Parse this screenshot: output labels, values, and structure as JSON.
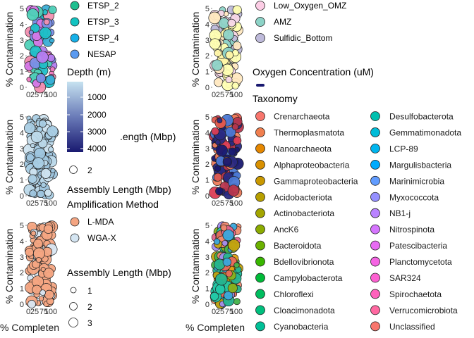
{
  "chart_data": [
    {
      "type": "scatter",
      "panel": "top-left",
      "xlabel": "",
      "ylabel": "% Contamination",
      "ylim": [
        0,
        5
      ],
      "y_ticks": [
        "0",
        "1",
        "2",
        "3",
        "4",
        "5"
      ],
      "x_ticks": [
        "0",
        "25",
        "75",
        "100"
      ],
      "fill_by": "Region",
      "fill_palette": [
        "#4ed1b8",
        "#1fc0c8",
        "#3aaed6",
        "#7a8fe8",
        "#b27df0",
        "#d678e8",
        "#f07ac0",
        "#f28fb0"
      ],
      "n_points": 80
    },
    {
      "type": "scatter",
      "panel": "top-right",
      "xlabel": "",
      "ylabel": "% Contamination",
      "ylim": [
        0,
        5
      ],
      "y_ticks": [
        "0",
        "1",
        "2",
        "3",
        "4",
        "5"
      ],
      "x_ticks": [
        "0",
        "25",
        "75",
        "100"
      ],
      "fill_by": "Region",
      "fill_palette": [
        "#ffffb3",
        "#fff5a6",
        "#ffe8c0",
        "#f8d8e8",
        "#8dd3c7",
        "#bebada"
      ],
      "n_points": 90
    },
    {
      "type": "scatter",
      "panel": "middle-left",
      "xlabel": "",
      "ylabel": "% Contamination",
      "ylim": [
        0,
        5
      ],
      "y_ticks": [
        "0",
        "1",
        "2",
        "3",
        "4",
        "5"
      ],
      "x_ticks": [
        "0",
        "25",
        "75",
        "100"
      ],
      "fill_by": "Depth (m)",
      "fill_palette": [
        "#bcd9ea",
        "#a9cde4",
        "#cfe4f0",
        "#9ec5de"
      ],
      "n_points": 110
    },
    {
      "type": "scatter",
      "panel": "middle-right",
      "xlabel": "",
      "ylabel": "% Contamination",
      "ylim": [
        0,
        5
      ],
      "y_ticks": [
        "0",
        "1",
        "2",
        "3",
        "4",
        "5"
      ],
      "x_ticks": [
        "0",
        "25",
        "75",
        "100"
      ],
      "fill_by": "Oxygen Concentration (uM)",
      "fill_palette": [
        "#191970",
        "#2a2a82",
        "#dc3d55",
        "#e35a4d",
        "#4a78d4",
        "#ee7c5c",
        "#b8364e"
      ],
      "n_points": 110
    },
    {
      "type": "scatter",
      "panel": "bottom-left",
      "xlabel": "% Completen",
      "ylabel": "% Contamination",
      "ylim": [
        0,
        5
      ],
      "y_ticks": [
        "0",
        "1",
        "2",
        "3",
        "4",
        "5"
      ],
      "x_ticks": [
        "0",
        "25",
        "75",
        "100"
      ],
      "fill_by": "Amplification Method",
      "fill_palette": [
        "#f4a582",
        "#f4a582",
        "#d8e6f2",
        "#f4a582"
      ],
      "n_points": 90
    },
    {
      "type": "scatter",
      "panel": "bottom-right",
      "xlabel": "% Completen",
      "ylabel": "% Contamination",
      "ylim": [
        0,
        5
      ],
      "y_ticks": [
        "0",
        "1",
        "2",
        "3",
        "4",
        "5"
      ],
      "x_ticks": [
        "0",
        "25",
        "75",
        "100"
      ],
      "fill_by": "Taxonomy",
      "fill_palette": [
        "#f08a6e",
        "#e86b5a",
        "#25b590",
        "#8ab01a",
        "#c4a30f",
        "#43b24a",
        "#23c8a6",
        "#de9e10",
        "#e3648c",
        "#3aa8dd",
        "#a18cf0"
      ],
      "n_points": 120
    }
  ],
  "legends": {
    "region_a": {
      "items": [
        {
          "label": "ETSP_2",
          "color": "#1fbf8f"
        },
        {
          "label": "ETSP_3",
          "color": "#12c3c1"
        },
        {
          "label": "ETSP_4",
          "color": "#16b0e8"
        },
        {
          "label": "NESAP",
          "color": "#5a9af0"
        }
      ]
    },
    "region_b": {
      "items": [
        {
          "label": "Low_Oxygen_OMZ",
          "color": "#fccde5"
        },
        {
          "label": "AMZ",
          "color": "#8dd3c7"
        },
        {
          "label": "Sulfidic_Bottom",
          "color": "#bebada"
        }
      ]
    },
    "depth": {
      "title": "Depth (m)",
      "ticks": [
        "1000",
        "2000",
        "3000",
        "4000"
      ],
      "color_low": "#191970",
      "color_high": "#c6e2f0"
    },
    "assembly_partial": {
      "title_clipped": ".ength (Mbp)",
      "items": [
        {
          "label": "2"
        }
      ]
    },
    "assembly_middle": {
      "title": "Assembly Length (Mbp)"
    },
    "amplification": {
      "title": "Amplification Method",
      "items": [
        {
          "label": "L-MDA",
          "color": "#f4a582"
        },
        {
          "label": "WGA-X",
          "color": "#d4e5f2"
        }
      ]
    },
    "assembly_bottom": {
      "title": "Assembly Length (Mbp)",
      "items": [
        {
          "label": "1"
        },
        {
          "label": "2"
        },
        {
          "label": "3"
        }
      ]
    },
    "oxygen": {
      "title": "Oxygen Concentration (uM)",
      "swatch_color": "#191970"
    },
    "taxonomy": {
      "title": "Taxonomy",
      "col1": [
        {
          "label": "Crenarchaeota",
          "color": "#f8766d"
        },
        {
          "label": "Thermoplasmatota",
          "color": "#f07f4f"
        },
        {
          "label": "Nanoarchaeota",
          "color": "#e58700"
        },
        {
          "label": "Alphaproteobacteria",
          "color": "#d89000"
        },
        {
          "label": "Gammaproteobacteria",
          "color": "#c99800"
        },
        {
          "label": "Acidobacteriota",
          "color": "#b79f00"
        },
        {
          "label": "Actinobacteriota",
          "color": "#a3a500"
        },
        {
          "label": "AncK6",
          "color": "#8bab00"
        },
        {
          "label": "Bacteroidota",
          "color": "#6bb100"
        },
        {
          "label": "Bdellovibrionota",
          "color": "#39b600"
        },
        {
          "label": "Campylobacterota",
          "color": "#00ba38"
        },
        {
          "label": "Chloroflexi",
          "color": "#00bd5f"
        },
        {
          "label": "Cloacimonadota",
          "color": "#00bf7d"
        },
        {
          "label": "Cyanobacteria",
          "color": "#00c097"
        }
      ],
      "col2": [
        {
          "label": "Desulfobacterota",
          "color": "#00c0af"
        },
        {
          "label": "Gemmatimonadota",
          "color": "#00bcd8"
        },
        {
          "label": "LCP-89",
          "color": "#00b5ee"
        },
        {
          "label": "Margulisbacteria",
          "color": "#00abfd"
        },
        {
          "label": "Marinimicrobia",
          "color": "#619cff"
        },
        {
          "label": "Myxococcota",
          "color": "#9590ff"
        },
        {
          "label": "NB1-j",
          "color": "#b983ff"
        },
        {
          "label": "Nitrospinota",
          "color": "#d575fe"
        },
        {
          "label": "Patescibacteria",
          "color": "#e76bf3"
        },
        {
          "label": "Planctomycetota",
          "color": "#f564e3"
        },
        {
          "label": "SAR324",
          "color": "#fd61d1"
        },
        {
          "label": "Spirochaetota",
          "color": "#ff62bc"
        },
        {
          "label": "Verrucomicrobiota",
          "color": "#ff68a1"
        },
        {
          "label": "Unclassified",
          "color": "#f8766d"
        }
      ]
    }
  }
}
